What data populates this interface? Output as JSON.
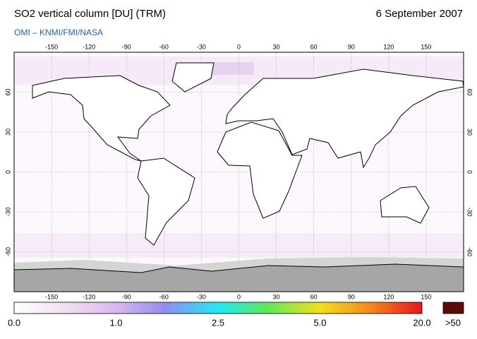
{
  "header": {
    "title": "SO2 vertical column [DU] (TRM)",
    "date": "6 September 2007",
    "subtitle": "OMI  –  KNMI/FMI/NASA"
  },
  "map": {
    "lon_ticks": [
      -150,
      -120,
      -90,
      -60,
      -30,
      0,
      30,
      60,
      90,
      120,
      150
    ],
    "lat_ticks": [
      60,
      30,
      0,
      -30,
      -60
    ]
  },
  "colorbar": {
    "labels": [
      "0.0",
      "1.0",
      "2.5",
      "5.0",
      "20.0"
    ],
    "overflow_label": ">50"
  }
}
